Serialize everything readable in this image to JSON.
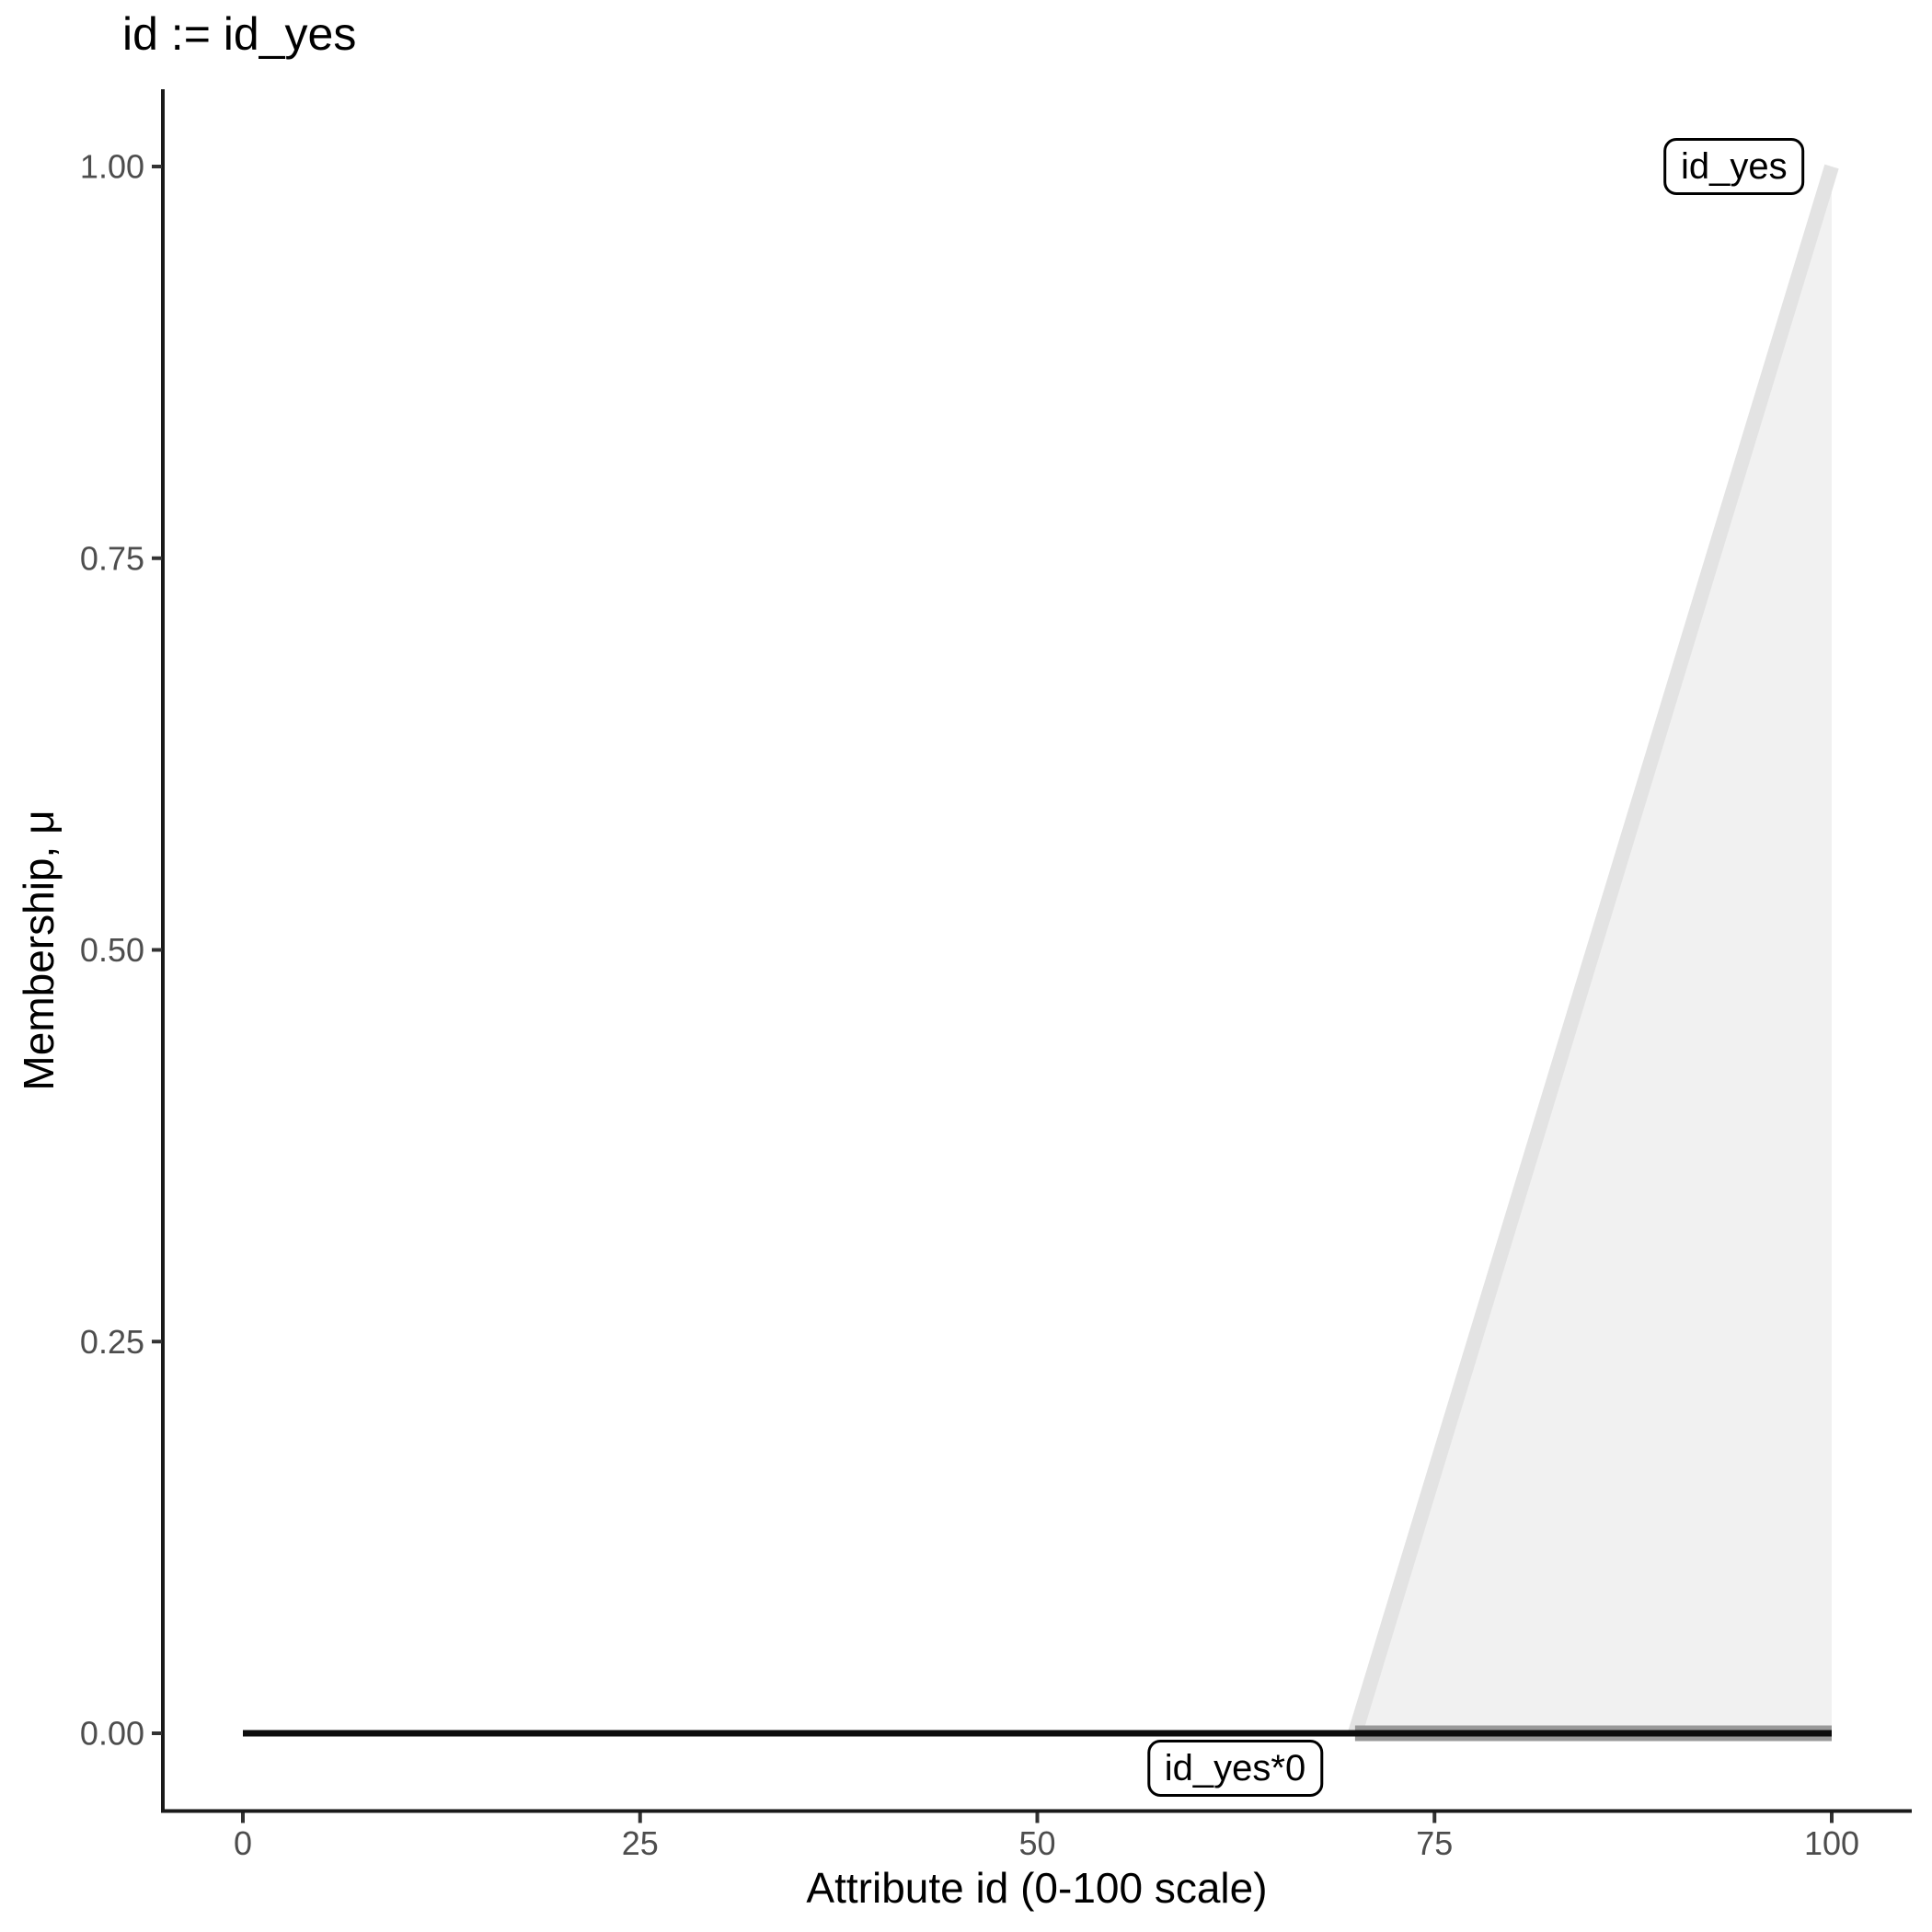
{
  "title": "id := id_yes",
  "chart_data": {
    "type": "area",
    "title": "id := id_yes",
    "xlabel": "Attribute id (0-100 scale)",
    "ylabel": "Membership, μ",
    "xlim": [
      0,
      100
    ],
    "ylim": [
      0,
      1
    ],
    "grid": false,
    "legend_position": "none",
    "x_ticks": {
      "labels": [
        "0",
        "25",
        "50",
        "75",
        "100"
      ],
      "values": [
        0,
        25,
        50,
        75,
        100
      ]
    },
    "y_ticks": {
      "labels": [
        "0.00",
        "0.25",
        "0.50",
        "0.75",
        "1.00"
      ],
      "values": [
        0,
        0.25,
        0.5,
        0.75,
        1
      ]
    },
    "series": [
      {
        "name": "id_yes",
        "kind": "area",
        "description": "fuzzy membership function of id_yes: 0 up to x=70, rising linearly to 1 at x=100",
        "points": [
          [
            70,
            0
          ],
          [
            100,
            1
          ]
        ],
        "baseline": 0,
        "fill": "#f1f1f1",
        "stroke": "#e3e3e3",
        "stroke_width": 16
      },
      {
        "name": "id_yes-support-baseline",
        "kind": "line",
        "description": "gray base segment along mu=0 under the support of id_yes",
        "points": [
          [
            70,
            0
          ],
          [
            100,
            0
          ]
        ],
        "stroke": "#999999",
        "stroke_width": 17
      },
      {
        "name": "id_yes*0",
        "kind": "line",
        "description": "activated membership id_yes*0 = 0 over the whole universe",
        "points": [
          [
            0,
            0
          ],
          [
            100,
            0
          ]
        ],
        "stroke": "#0d0d0d",
        "stroke_width": 7
      }
    ],
    "annotations": {
      "set_label": {
        "text": "id_yes",
        "x": 93.85,
        "y": 1.0
      },
      "zero_label": {
        "text": "id_yes*0",
        "x": 62.45,
        "y": -0.0226
      }
    }
  },
  "colors": {
    "background": "#ffffff",
    "axis_line": "#1a1a1a",
    "tick_mark": "#333333",
    "tick_label": "#4d4d4d",
    "area_fill": "#f1f1f1",
    "membership_line": "#e3e3e3",
    "support_baseline": "#999999",
    "zero_line": "#0d0d0d"
  }
}
